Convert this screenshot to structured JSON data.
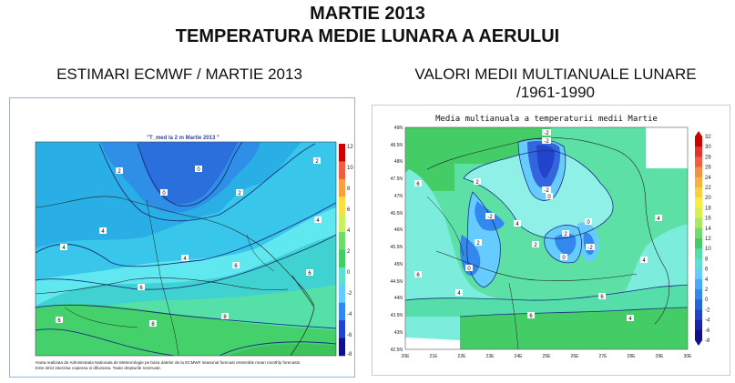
{
  "header": {
    "title_line1": "MARTIE 2013",
    "title_line2": "TEMPERATURA MEDIE LUNARA A AERULUI"
  },
  "left": {
    "subtitle": "ESTIMARI ECMWF / MARTIE 2013",
    "map_title": "\"T_med la 2 m Martie 2013 \"",
    "colorbar_labels": [
      "12",
      "10",
      "8",
      "6",
      "4",
      "2",
      "0",
      "-2",
      "-4",
      "-6",
      "-8"
    ],
    "colorbar_top_label": "12",
    "contour_labels": [
      "0",
      "2",
      "4",
      "6",
      "8",
      "-2"
    ],
    "footer_line1": "Harta realizata de Administratia Nationala de Meteorologie pe baza datelor de la ECMWF seasonal forecast ensemble mean monthly forecasts.",
    "footer_line2": "Este strict interzisa copierea si difuzarea. Toate drepturile rezervate."
  },
  "right": {
    "subtitle_line1": "VALORI MEDII MULTIANUALE LUNARE",
    "subtitle_line2": "/1961-1990",
    "map_title": "Media multianuala a temperaturii medii Martie",
    "lat_labels": [
      "49N",
      "48.5N",
      "48N",
      "47.5N",
      "47N",
      "46.5N",
      "46N",
      "45.5N",
      "45N",
      "44.5N",
      "44N",
      "43.5N",
      "43N",
      "42.5N"
    ],
    "lon_labels": [
      "20E",
      "21E",
      "22E",
      "23E",
      "24E",
      "25E",
      "26E",
      "27E",
      "28E",
      "29E",
      "30E"
    ],
    "colorbar_labels": [
      "32",
      "30",
      "28",
      "26",
      "24",
      "22",
      "20",
      "18",
      "16",
      "14",
      "12",
      "10",
      "8",
      "6",
      "4",
      "2",
      "0",
      "-2",
      "-4",
      "-6",
      "-8"
    ],
    "contour_labels": [
      "-2",
      "0",
      "2",
      "4",
      "6"
    ]
  },
  "colors": {
    "cold_deep": "#2244cc",
    "cold": "#4d88ff",
    "cool": "#66ccff",
    "mild": "#55ddcc",
    "warm": "#44cc66",
    "frame": "#9fb0d8"
  }
}
